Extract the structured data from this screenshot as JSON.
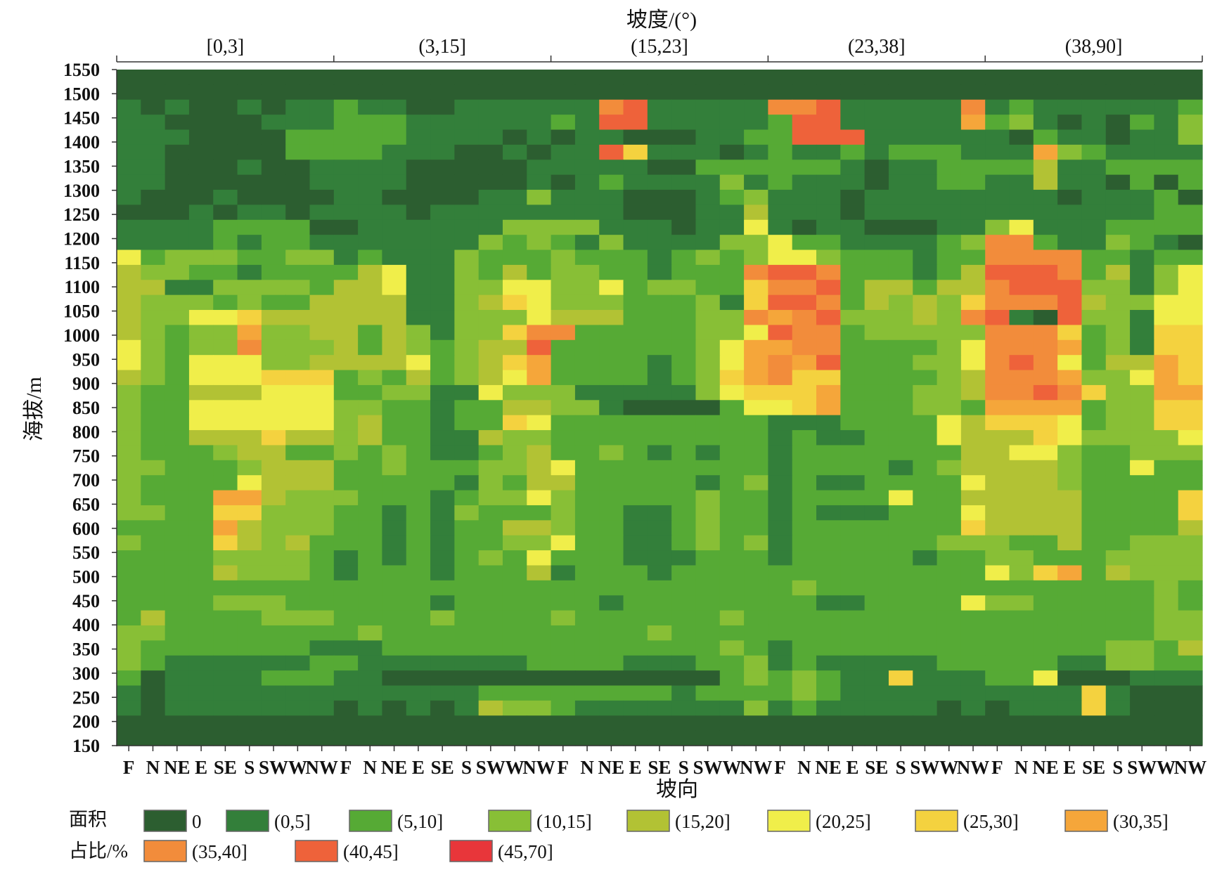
{
  "chart_data": {
    "type": "heatmap",
    "top_axis_title": "坡度/(°)",
    "xlabel": "坡向",
    "ylabel": "海拔/m",
    "slope_classes": [
      "[0,3]",
      "(3,15]",
      "(15,23]",
      "(23,38]",
      "(38,90]"
    ],
    "aspect_ticks": [
      "F",
      "N",
      "NE",
      "E",
      "SE",
      "S",
      "SW",
      "W",
      "NW"
    ],
    "y_ticks": [
      1550,
      1500,
      1450,
      1400,
      1350,
      1300,
      1250,
      1200,
      1150,
      1100,
      1050,
      1000,
      950,
      900,
      850,
      800,
      750,
      700,
      650,
      600,
      550,
      500,
      450,
      400,
      350,
      300,
      250,
      200,
      150
    ],
    "legend_title": [
      "面积",
      "占比/%"
    ],
    "legend": [
      {
        "label": "0",
        "color": "#2c5e30"
      },
      {
        "label": "(0,5]",
        "color": "#337f3a"
      },
      {
        "label": "(5,10]",
        "color": "#56aa35"
      },
      {
        "label": "(10,15]",
        "color": "#88bf36"
      },
      {
        "label": "(15,20]",
        "color": "#b2c234"
      },
      {
        "label": "(20,25]",
        "color": "#f0ee4a"
      },
      {
        "label": "(25,30]",
        "color": "#f4d23f"
      },
      {
        "label": "(30,35]",
        "color": "#f5a63a"
      },
      {
        "label": "(35,40]",
        "color": "#f28c3b"
      },
      {
        "label": "(40,45]",
        "color": "#ee623a"
      },
      {
        "label": "(45,70]",
        "color": "#e8363a"
      }
    ],
    "rows_top_to_bottom": [
      "000000000000000000000000000000000000000000000",
      "000000000000000000000000000000000000000000000",
      "101001011211001111118911111889111118121111112",
      "110000111222111111219911111299111117231010213",
      "111000022222111101011000112299911111102110113",
      "110000022221110010119611101211212221117321111",
      "110001001111000001111100222222101122224112222",
      "110000001111000001012111131211101122114110202",
      "100010000110000113111000123111011111111011120",
      "000101101111011111111000114111011111111111122",
      "111122220011111133331110115101100011351112222",
      "111121221111111323213111133522111123882113210",
      "523332233121113222322212323553222122888822122",
      "433221222245113242332212228998222124999824135",
      "441133332445113355335233226889244244899933135",
      "433323224444113465333222316998243436888943355",
      "433556444444113335444222338789333438910933155",
      "432337334424313368822222335988233333888623166",
      "532338333424323449222222357788222235888723166",
      "532555334444523467222212357879222335898524476",
      "432555666232423457222212367866222234888733576",
      "322444555223311533311111356667222334889863377",
      "322555555332212244331000025567222332777723366",
      "322555555342212265222222222111222254666523366",
      "322444644342211433222222222121122254446533335",
      "322234422323211234223212122122222224455322333",
      "332223444223222334522222222122221234444322522",
      "322225444222221324422222123121122225444322222",
      "322277433322212335322222322122225224444422226",
      "332266333221213222322112322121112225444422226",
      "222274333221212244322112322122222226444422224",
      "322264342221212233522112323122222233322422333",
      "222233332121212325222111222122222122332223333",
      "222243332122212224122212222222222222536724333",
      "222222222222222222222222222232222222222222232",
      "222233322222212222221222222221122225332222232",
      "242222333222232222322222232222222222222222233",
      "332222222232222222222232222222222222222222233",
      "322222221112222222222222232122222222222223324",
      "321111112211111112222111223121111122222113322",
      "201111222110000000000000023232116111225000111",
      "101111111111111222222221222232111111111161000",
      "101111111010101433211111113121111101011161000",
      "000000000000000000000000000000000000000000000",
      "000000000000000000000000000000000000000000000"
    ]
  }
}
